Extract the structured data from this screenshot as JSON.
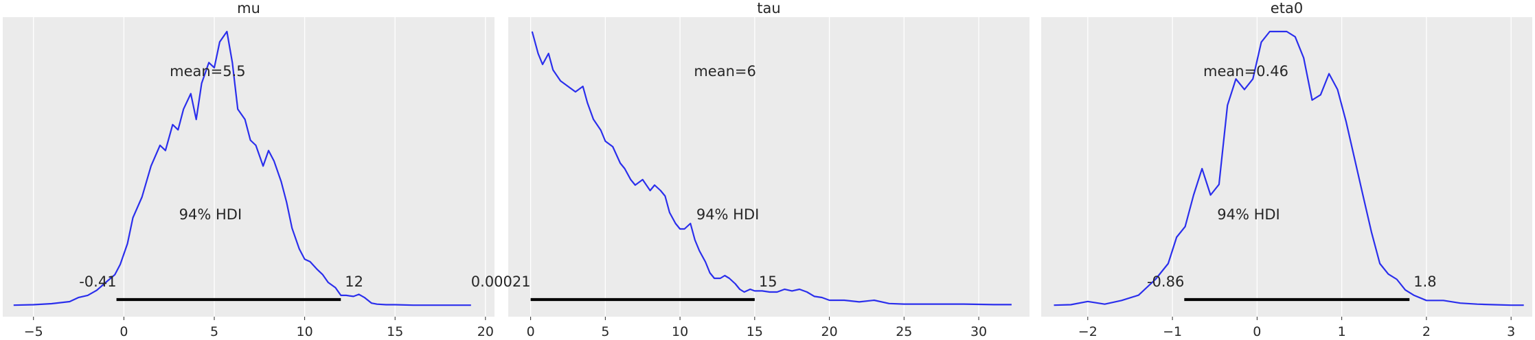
{
  "chart_data": [
    {
      "type": "area",
      "title": "mu",
      "xlim": [
        -6.7,
        20.5
      ],
      "xticks": [
        -5,
        0,
        5,
        10,
        15,
        20
      ],
      "xtick_labels": [
        "−5",
        "0",
        "5",
        "10",
        "15",
        "20"
      ],
      "mean_label": "mean=5.5",
      "hdi_label": "94% HDI",
      "hdi": [
        -0.41,
        12
      ],
      "hdi_low_label": "-0.41",
      "hdi_high_label": "12",
      "series": [
        {
          "x": [
            -6.1,
            -5,
            -4,
            -3,
            -2.5,
            -2,
            -1.5,
            -1,
            -0.5,
            -0.2,
            0.2,
            0.5,
            1,
            1.5,
            2,
            2.3,
            2.7,
            3,
            3.3,
            3.7,
            4,
            4.3,
            4.7,
            5,
            5.3,
            5.7,
            6,
            6.3,
            6.7,
            7,
            7.3,
            7.7,
            8,
            8.3,
            8.7,
            9,
            9.3,
            9.7,
            10,
            10.3,
            10.7,
            11,
            11.3,
            11.7,
            12,
            12.3,
            12.7,
            13,
            13.3,
            13.7,
            14,
            14.5,
            15,
            16,
            17,
            18,
            19.2
          ],
          "y": [
            0.001,
            0.002,
            0.004,
            0.008,
            0.016,
            0.02,
            0.03,
            0.045,
            0.06,
            0.08,
            0.12,
            0.17,
            0.21,
            0.27,
            0.31,
            0.3,
            0.35,
            0.34,
            0.38,
            0.41,
            0.36,
            0.43,
            0.47,
            0.46,
            0.51,
            0.53,
            0.47,
            0.38,
            0.36,
            0.32,
            0.31,
            0.27,
            0.3,
            0.28,
            0.24,
            0.2,
            0.15,
            0.11,
            0.09,
            0.085,
            0.07,
            0.06,
            0.045,
            0.035,
            0.02,
            0.02,
            0.018,
            0.022,
            0.016,
            0.005,
            0.003,
            0.002,
            0.002,
            0.001,
            0.001,
            0.001,
            0.001
          ]
        }
      ]
    },
    {
      "type": "area",
      "title": "tau",
      "xlim": [
        -1.5,
        33.4
      ],
      "xticks": [
        0,
        5,
        10,
        15,
        20,
        25,
        30
      ],
      "xtick_labels": [
        "0",
        "5",
        "10",
        "15",
        "20",
        "25",
        "30"
      ],
      "mean_label": "mean=6",
      "hdi_label": "94% HDI",
      "hdi": [
        0.00021,
        15
      ],
      "hdi_low_label": "0.00021",
      "hdi_high_label": "15",
      "series": [
        {
          "x": [
            0.1,
            0.2,
            0.5,
            0.8,
            1.2,
            1.5,
            2,
            2.5,
            3,
            3.5,
            3.8,
            4.2,
            4.7,
            5,
            5.5,
            6,
            6.3,
            6.7,
            7,
            7.5,
            8,
            8.3,
            8.7,
            9,
            9.3,
            9.7,
            10,
            10.3,
            10.7,
            11,
            11.3,
            11.7,
            12,
            12.3,
            12.7,
            13,
            13.3,
            13.7,
            14,
            14.3,
            14.7,
            15,
            15.5,
            16,
            16.5,
            17,
            17.5,
            18,
            18.5,
            19,
            19.5,
            20,
            21,
            22,
            23,
            24,
            25,
            27,
            29,
            31,
            32.2
          ],
          "y": [
            0.5,
            0.49,
            0.46,
            0.44,
            0.46,
            0.43,
            0.41,
            0.4,
            0.39,
            0.4,
            0.37,
            0.34,
            0.32,
            0.3,
            0.29,
            0.26,
            0.25,
            0.23,
            0.22,
            0.23,
            0.21,
            0.22,
            0.21,
            0.2,
            0.17,
            0.15,
            0.14,
            0.14,
            0.15,
            0.12,
            0.1,
            0.08,
            0.06,
            0.05,
            0.05,
            0.055,
            0.05,
            0.04,
            0.03,
            0.025,
            0.03,
            0.027,
            0.027,
            0.025,
            0.025,
            0.03,
            0.027,
            0.03,
            0.025,
            0.017,
            0.015,
            0.01,
            0.01,
            0.007,
            0.01,
            0.004,
            0.003,
            0.003,
            0.003,
            0.002,
            0.002
          ]
        }
      ]
    },
    {
      "type": "area",
      "title": "eta0",
      "xlim": [
        -2.55,
        3.25
      ],
      "xticks": [
        -2,
        -1,
        0,
        1,
        2,
        3
      ],
      "xtick_labels": [
        "−2",
        "−1",
        "0",
        "1",
        "2",
        "3"
      ],
      "mean_label": "mean=0.46",
      "hdi_label": "94% HDI",
      "hdi": [
        -0.86,
        1.8
      ],
      "hdi_low_label": "-0.86",
      "hdi_high_label": "1.8",
      "series": [
        {
          "x": [
            -2.4,
            -2.2,
            -2,
            -1.8,
            -1.6,
            -1.4,
            -1.2,
            -1.05,
            -0.95,
            -0.85,
            -0.75,
            -0.65,
            -0.55,
            -0.45,
            -0.35,
            -0.25,
            -0.15,
            -0.05,
            0.05,
            0.15,
            0.25,
            0.35,
            0.45,
            0.55,
            0.65,
            0.75,
            0.85,
            0.95,
            1.05,
            1.15,
            1.25,
            1.35,
            1.45,
            1.55,
            1.65,
            1.75,
            1.85,
            2,
            2.2,
            2.4,
            2.6,
            2.8,
            3,
            3.15
          ],
          "y": [
            0.001,
            0.002,
            0.008,
            0.003,
            0.01,
            0.02,
            0.05,
            0.08,
            0.13,
            0.15,
            0.21,
            0.26,
            0.21,
            0.23,
            0.38,
            0.43,
            0.41,
            0.43,
            0.5,
            0.52,
            0.52,
            0.52,
            0.51,
            0.47,
            0.39,
            0.4,
            0.44,
            0.41,
            0.35,
            0.28,
            0.21,
            0.14,
            0.08,
            0.06,
            0.05,
            0.03,
            0.02,
            0.01,
            0.01,
            0.005,
            0.003,
            0.002,
            0.001,
            0.001
          ]
        }
      ]
    }
  ]
}
